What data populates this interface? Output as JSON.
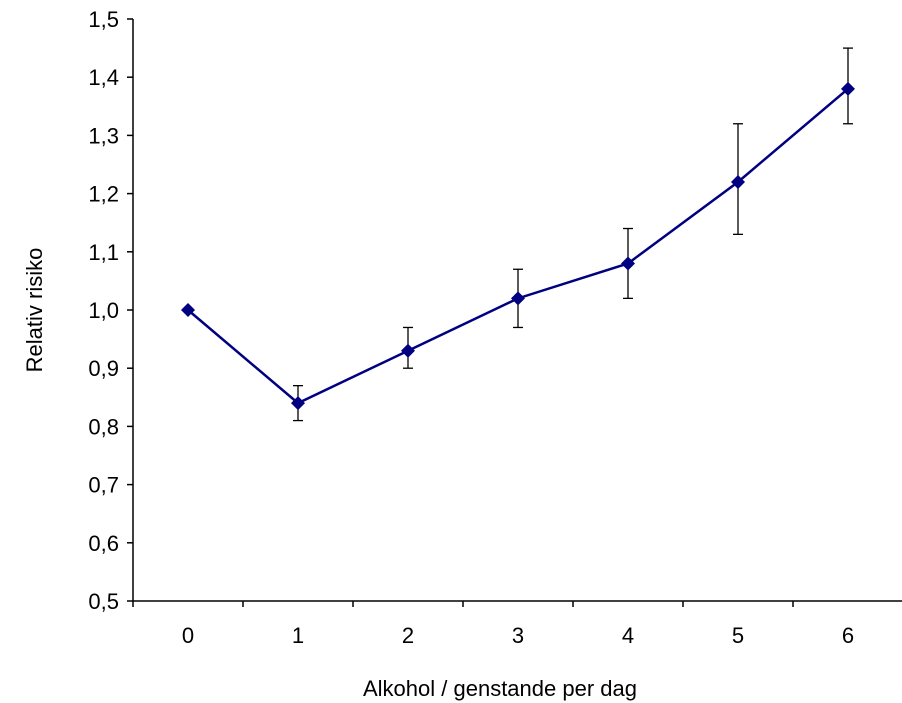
{
  "chart_data": {
    "type": "line",
    "title": "",
    "xlabel": "Alkohol / genstande per dag",
    "ylabel": "Relativ risiko",
    "categories": [
      "0",
      "1",
      "2",
      "3",
      "4",
      "5",
      "6"
    ],
    "x_tick_labels": [
      "0",
      "1",
      "2",
      "3",
      "4",
      "5",
      "6"
    ],
    "y_tick_labels": [
      "0,5",
      "0,6",
      "0,7",
      "0,8",
      "0,9",
      "1,0",
      "1,1",
      "1,2",
      "1,3",
      "1,4",
      "1,5"
    ],
    "ylim": [
      0.5,
      1.5
    ],
    "grid": false,
    "legend": "none",
    "series": [
      {
        "values": [
          1.0,
          0.84,
          0.93,
          1.02,
          1.08,
          1.22,
          1.38
        ],
        "error_low": [
          1.0,
          0.81,
          0.9,
          0.97,
          1.02,
          1.13,
          1.32
        ],
        "error_high": [
          1.0,
          0.87,
          0.97,
          1.07,
          1.14,
          1.32,
          1.45
        ],
        "color": "#000080",
        "marker": "diamond"
      }
    ]
  }
}
